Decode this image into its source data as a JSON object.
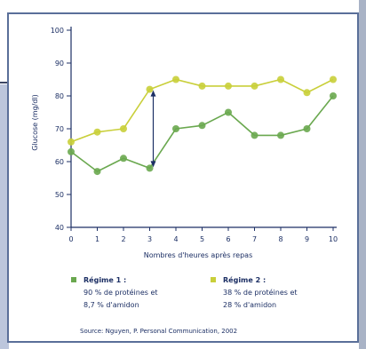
{
  "chart_data": {
    "type": "line",
    "xlabel": "Nombres d'heures après repas",
    "ylabel": "Glucose (mg/dl)",
    "ylim": [
      40,
      100
    ],
    "xlim": [
      0,
      10
    ],
    "yticks": [
      40,
      50,
      60,
      70,
      80,
      90,
      100
    ],
    "x": [
      0,
      1,
      2,
      3,
      4,
      5,
      6,
      7,
      8,
      9,
      10
    ],
    "series": [
      {
        "name": "Régime 1",
        "color": "#6aa84f",
        "values": [
          63,
          57,
          61,
          58,
          70,
          71,
          75,
          68,
          68,
          70,
          80
        ]
      },
      {
        "name": "Régime 2",
        "color": "#c9cf3a",
        "values": [
          66,
          69,
          70,
          82,
          85,
          83,
          83,
          83,
          85,
          81,
          85
        ]
      }
    ],
    "annotation": {
      "type": "double-arrow",
      "x": 3,
      "from": 58,
      "to": 82
    }
  },
  "legend": {
    "r1": {
      "title": "Régime 1 :",
      "line1": "90 % de protéines et",
      "line2": "8,7 % d'amidon"
    },
    "r2": {
      "title": "Régime 2 :",
      "line1": "38 % de protéines et",
      "line2": "28 % d'amidon"
    }
  },
  "source": "Source: Nguyen, P. Personal Communication, 2002",
  "colors": {
    "axis": "#1c2f64",
    "frame": "#5a6f99"
  }
}
